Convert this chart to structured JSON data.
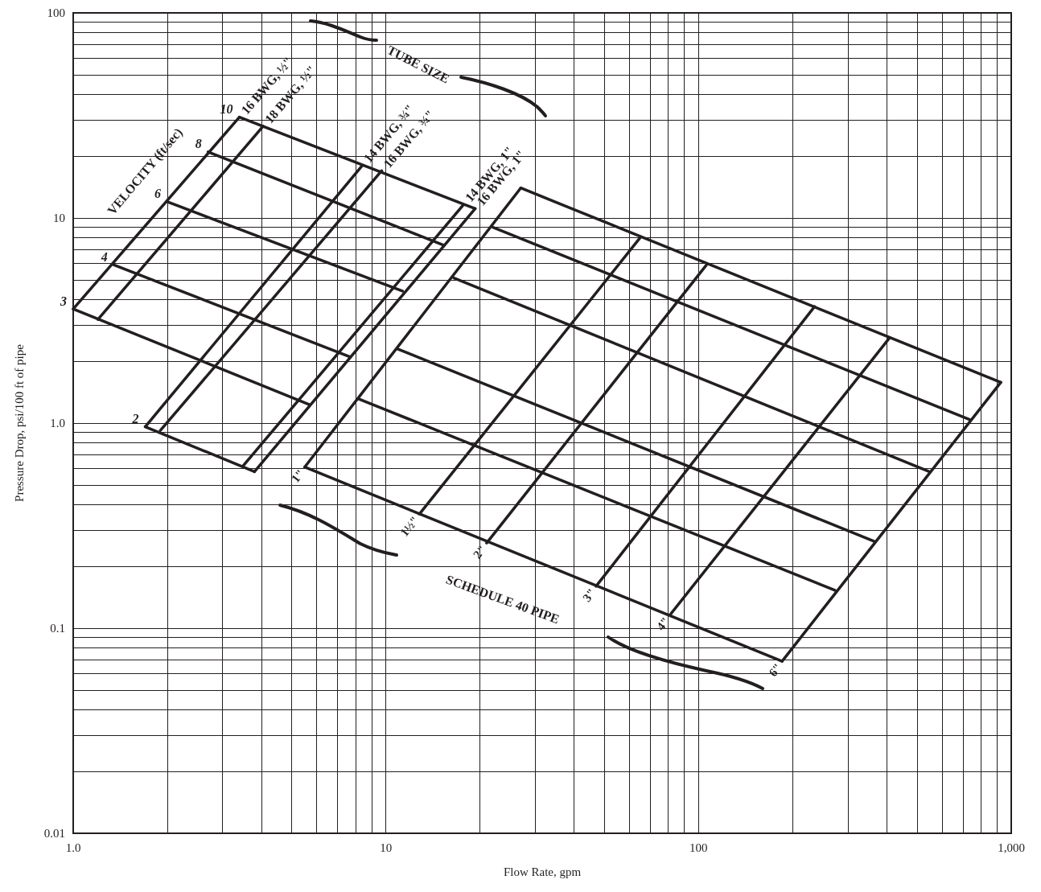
{
  "chart_data": {
    "type": "line",
    "xlabel": "Flow Rate, gpm",
    "ylabel": "Pressure Drop, psi/100 ft of pipe",
    "xlim": [
      1,
      1000
    ],
    "ylim": [
      0.01,
      100
    ],
    "xticks": [
      {
        "value": 1,
        "label": "1.0"
      },
      10,
      100,
      {
        "value": 1000,
        "label": "1,000"
      }
    ],
    "yticks": [
      0.01,
      0.1,
      {
        "value": 1,
        "label": "1.0"
      },
      10,
      100
    ],
    "log": "xy",
    "grid": true,
    "legend": false,
    "marker": "none",
    "line_style": "solid",
    "annotations": [
      "VELOCITY (ft/sec)",
      "TUBE SIZE",
      "SCHEDULE 40 PIPE"
    ],
    "series": [
      {
        "name": "16 BWG, ½\"",
        "color": "#231f20",
        "x": [
          1.0,
          3.4
        ],
        "values": [
          3.6,
          31
        ]
      },
      {
        "name": "18 BWG, ½\"",
        "color": "#231f20",
        "x": [
          1.2,
          4.05
        ],
        "values": [
          3.2,
          28
        ]
      },
      {
        "name": "14 BWG, ¾\"",
        "color": "#231f20",
        "x": [
          1.7,
          8.4
        ],
        "values": [
          0.96,
          18
        ]
      },
      {
        "name": "16 BWG, ¾\"",
        "color": "#231f20",
        "x": [
          1.9,
          9.7
        ],
        "values": [
          0.92,
          17
        ]
      },
      {
        "name": "14 BWG, 1\"",
        "color": "#231f20",
        "x": [
          3.5,
          17.7
        ],
        "values": [
          0.62,
          11.6
        ]
      },
      {
        "name": "16 BWG, 1\"",
        "color": "#231f20",
        "x": [
          3.8,
          19.3
        ],
        "values": [
          0.58,
          11.1
        ]
      },
      {
        "name": "10",
        "color": "#231f20",
        "x": [
          3.4,
          19.3
        ],
        "values": [
          31,
          11.1
        ]
      },
      {
        "name": "8",
        "color": "#231f20",
        "x": [
          2.7,
          15.2
        ],
        "values": [
          21,
          7.4
        ]
      },
      {
        "name": "6",
        "color": "#231f20",
        "x": [
          2.0,
          11.3
        ],
        "values": [
          12,
          4.4
        ]
      },
      {
        "name": "4",
        "color": "#231f20",
        "x": [
          1.35,
          7.7
        ],
        "values": [
          5.9,
          2.1
        ]
      },
      {
        "name": "3",
        "color": "#231f20",
        "x": [
          1.0,
          5.7
        ],
        "values": [
          3.6,
          1.23
        ]
      },
      {
        "name": "2",
        "color": "#231f20",
        "x": [
          1.7,
          3.8
        ],
        "values": [
          0.96,
          0.58
        ]
      },
      {
        "name": "1\"",
        "color": "#231f20",
        "x": [
          5.5,
          27
        ],
        "values": [
          0.61,
          14
        ]
      },
      {
        "name": "1½\"",
        "color": "#231f20",
        "x": [
          12.8,
          65
        ],
        "values": [
          0.36,
          8.0
        ]
      },
      {
        "name": "2\"",
        "color": "#231f20",
        "x": [
          21,
          106
        ],
        "values": [
          0.26,
          5.9
        ]
      },
      {
        "name": "3\"",
        "color": "#231f20",
        "x": [
          47,
          235
        ],
        "values": [
          0.16,
          3.7
        ]
      },
      {
        "name": "4\"",
        "color": "#231f20",
        "x": [
          81,
          408
        ],
        "values": [
          0.116,
          2.6
        ]
      },
      {
        "name": "6\"",
        "color": "#231f20",
        "x": [
          185,
          926
        ],
        "values": [
          0.069,
          1.58
        ]
      },
      {
        "color": "#231f20",
        "x": [
          27,
          926
        ],
        "values": [
          14,
          1.58
        ]
      },
      {
        "color": "#231f20",
        "x": [
          22,
          736
        ],
        "values": [
          9.0,
          1.04
        ]
      },
      {
        "color": "#231f20",
        "x": [
          16.5,
          547
        ],
        "values": [
          5.1,
          0.58
        ]
      },
      {
        "color": "#231f20",
        "x": [
          10.9,
          365
        ],
        "values": [
          2.3,
          0.265
        ]
      },
      {
        "color": "#231f20",
        "x": [
          8.2,
          273
        ],
        "values": [
          1.31,
          0.153
        ]
      },
      {
        "color": "#231f20",
        "x": [
          5.5,
          185
        ],
        "values": [
          0.61,
          0.069
        ]
      }
    ]
  }
}
